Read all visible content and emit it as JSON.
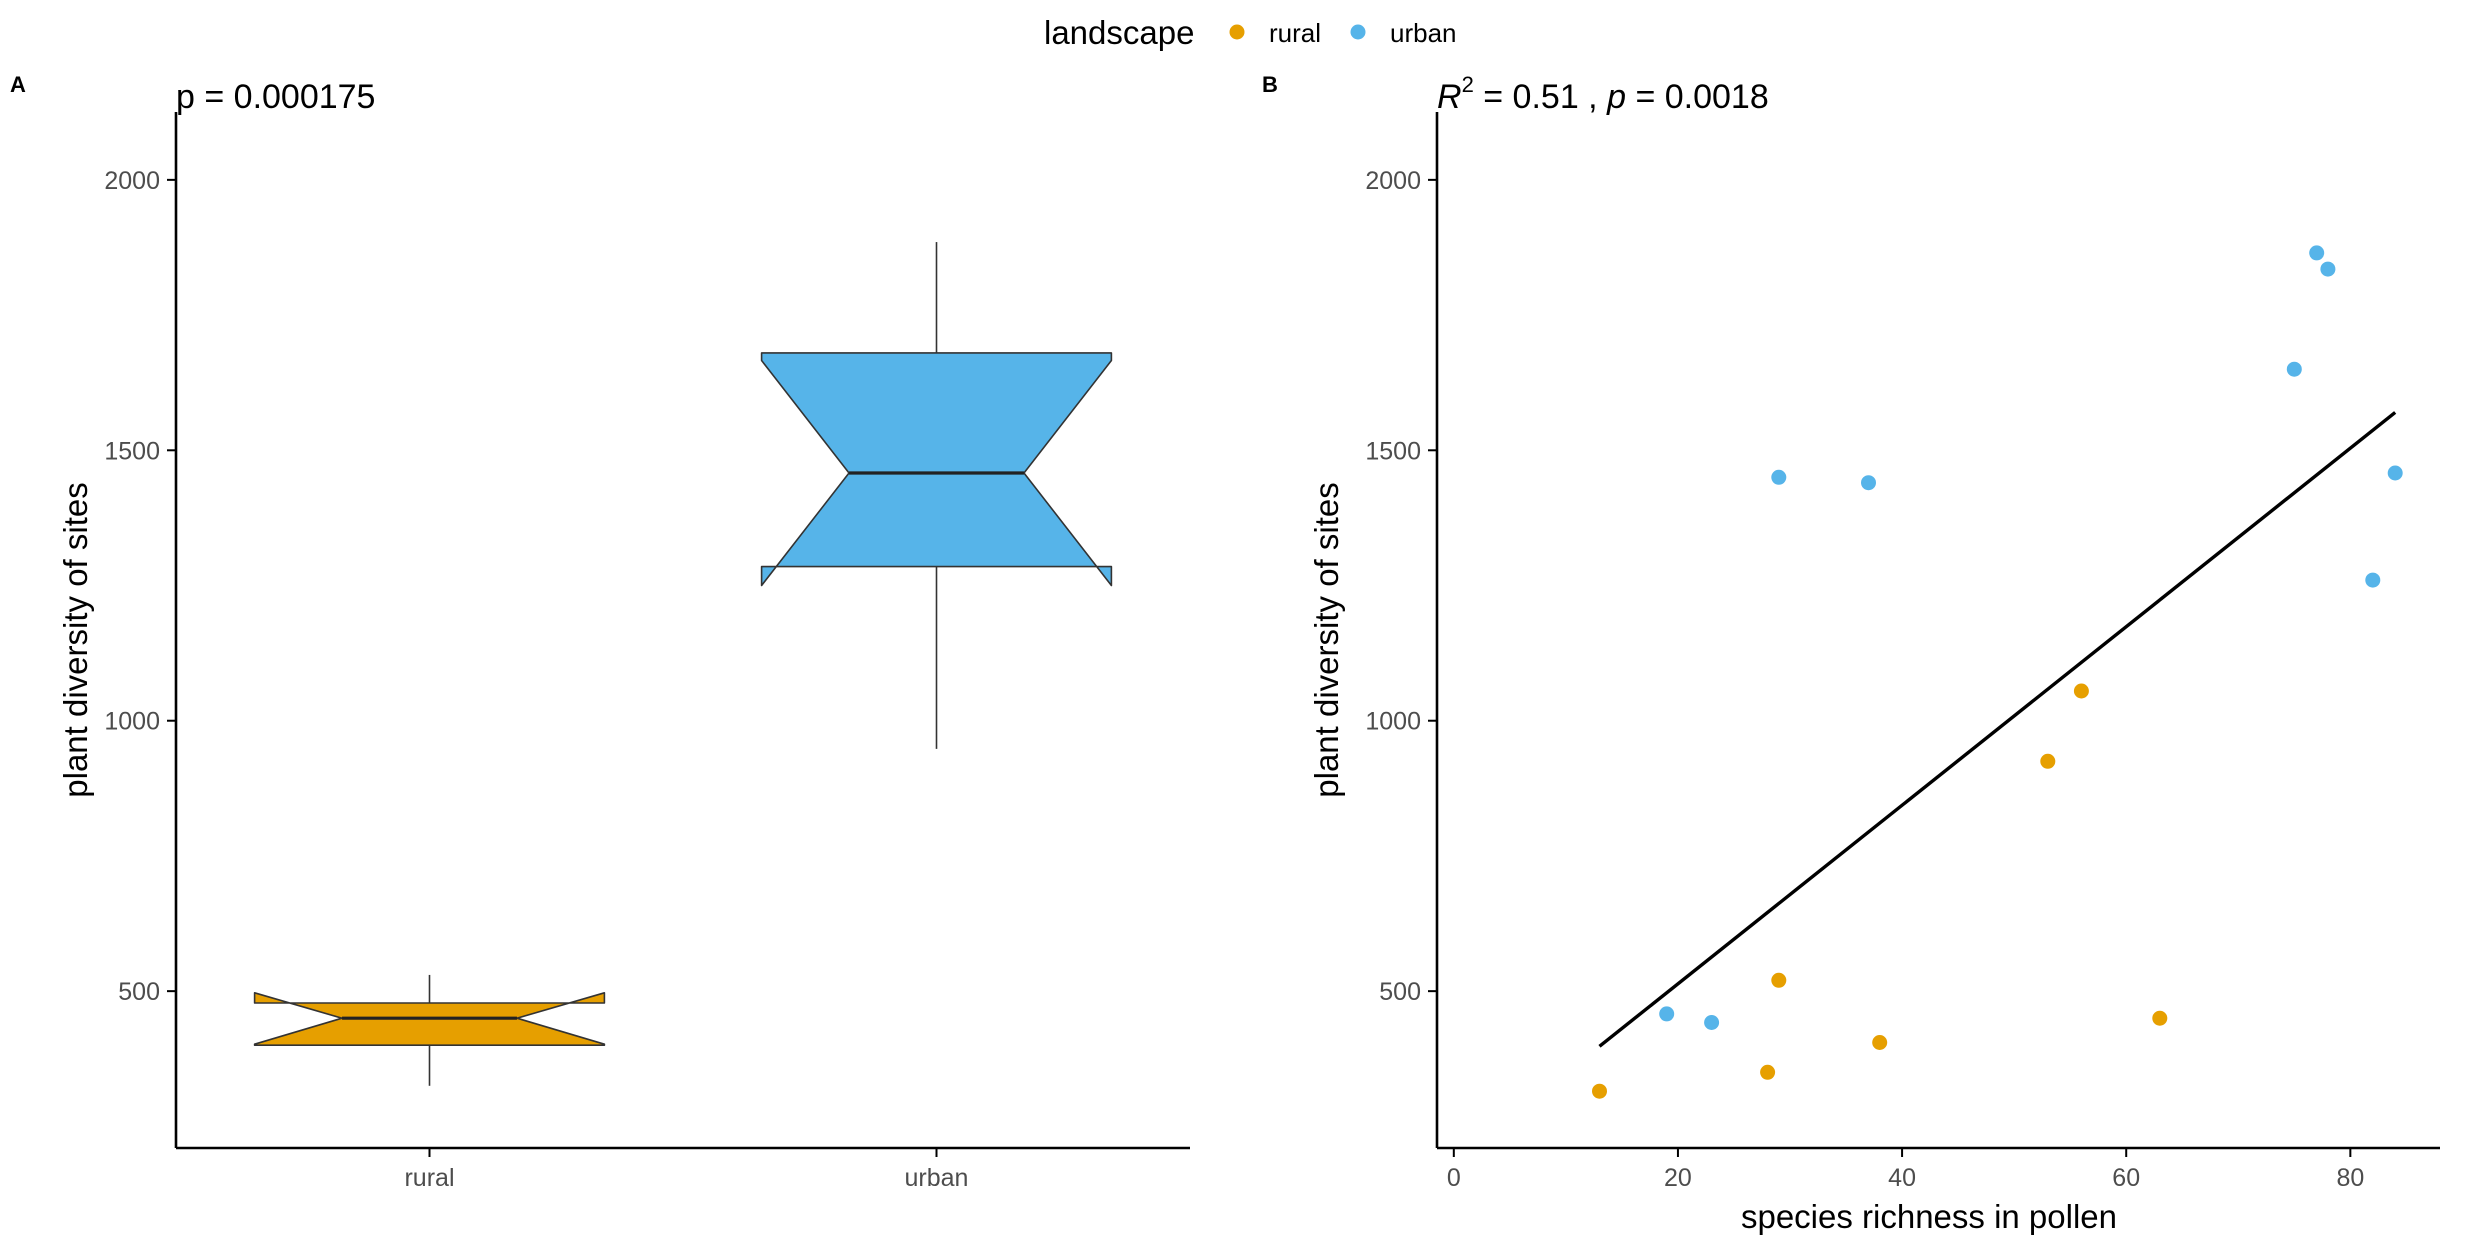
{
  "legend": {
    "title": "landscape",
    "items": [
      {
        "label": "rural",
        "color": "#E69F00"
      },
      {
        "label": "urban",
        "color": "#56B4E9"
      }
    ],
    "position": "top"
  },
  "chart_data": [
    {
      "panel_label": "A",
      "type": "boxplot",
      "notched": true,
      "title": "p = 0.000175",
      "xlabel": "",
      "ylabel": "plant diversity of sites",
      "categories": [
        "rural",
        "urban"
      ],
      "ylim": [
        210,
        2070
      ],
      "yticks": [
        500,
        1000,
        1500,
        2000
      ],
      "grid": false,
      "boxes": [
        {
          "category": "rural",
          "color": "#E69F00",
          "min": 325,
          "q1": 400,
          "median": 450,
          "q3": 478,
          "max": 530,
          "notch_low": 402,
          "notch_high": 497
        },
        {
          "category": "urban",
          "color": "#56B4E9",
          "min": 948,
          "q1": 1285,
          "median": 1458,
          "q3": 1680,
          "max": 1885,
          "notch_low": 1250,
          "notch_high": 1666
        }
      ]
    },
    {
      "panel_label": "B",
      "type": "scatter",
      "title_parts": {
        "r": "R",
        "sup": "2",
        "mid": " = 0.51 , ",
        "p": "p",
        "end": " = 0.0018"
      },
      "xlabel": "species richness in pollen",
      "ylabel": "plant diversity of sites",
      "xlim": [
        -1.5,
        88
      ],
      "ylim": [
        210,
        2070
      ],
      "xticks": [
        0,
        20,
        40,
        60,
        80
      ],
      "yticks": [
        500,
        1000,
        1500,
        2000
      ],
      "grid": false,
      "trendline": {
        "x": [
          13,
          84
        ],
        "y": [
          398,
          1570
        ]
      },
      "series": [
        {
          "name": "rural",
          "color": "#E69F00",
          "points": [
            [
              13,
              315
            ],
            [
              28,
              350
            ],
            [
              29,
              520
            ],
            [
              38,
              405
            ],
            [
              53,
              925
            ],
            [
              56,
              1055
            ],
            [
              63,
              450
            ]
          ]
        },
        {
          "name": "urban",
          "color": "#56B4E9",
          "points": [
            [
              19,
              458
            ],
            [
              23,
              442
            ],
            [
              29,
              1450
            ],
            [
              37,
              1440
            ],
            [
              75,
              1650
            ],
            [
              77,
              1865
            ],
            [
              78,
              1835
            ],
            [
              82,
              1260
            ],
            [
              84,
              1458
            ]
          ]
        }
      ]
    }
  ]
}
